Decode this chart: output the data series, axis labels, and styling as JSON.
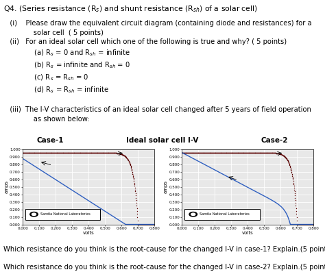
{
  "title_line": "Q4. (Series resistance (Rₛ) and shunt resistance (Rₛh) of a solar cell)",
  "bottom_text": [
    "Which resistance do you think is the root-cause for the changed I-V in case-1? Explain.(5 points)",
    "Which resistance do you think is the root-cause for the changed I-V in case-2? Explain.(5 points)"
  ],
  "case1_label": "Case-1",
  "case2_label": "Case-2",
  "center_label": "Ideal solar cell I-V",
  "xlabel": "volts",
  "ylabel": "amps",
  "xlim": [
    0.0,
    0.8
  ],
  "ylim": [
    0.0,
    1.0
  ],
  "xticks": [
    0.0,
    0.1,
    0.2,
    0.3,
    0.4,
    0.5,
    0.6,
    0.7,
    0.8
  ],
  "yticks": [
    0.0,
    0.1,
    0.2,
    0.3,
    0.4,
    0.5,
    0.6,
    0.7,
    0.8,
    0.9,
    1.0
  ],
  "legend_text": "Sandia National Laboratories",
  "bg_color": "#e8e8e8",
  "ideal_color": "#5a0000",
  "case1_color": "#3060c0",
  "case2_color": "#3060c0",
  "grid_color": "#ffffff",
  "Isc_ideal": 0.96,
  "Voc_ideal": 0.7,
  "sharpness_ideal": 38,
  "case1_Isc": 0.88,
  "case1_Voc": 0.625,
  "case2_Isc": 0.96,
  "case2_Voc": 0.7,
  "case2_sharpness": 38,
  "case2_shunt_slope": 1.16
}
